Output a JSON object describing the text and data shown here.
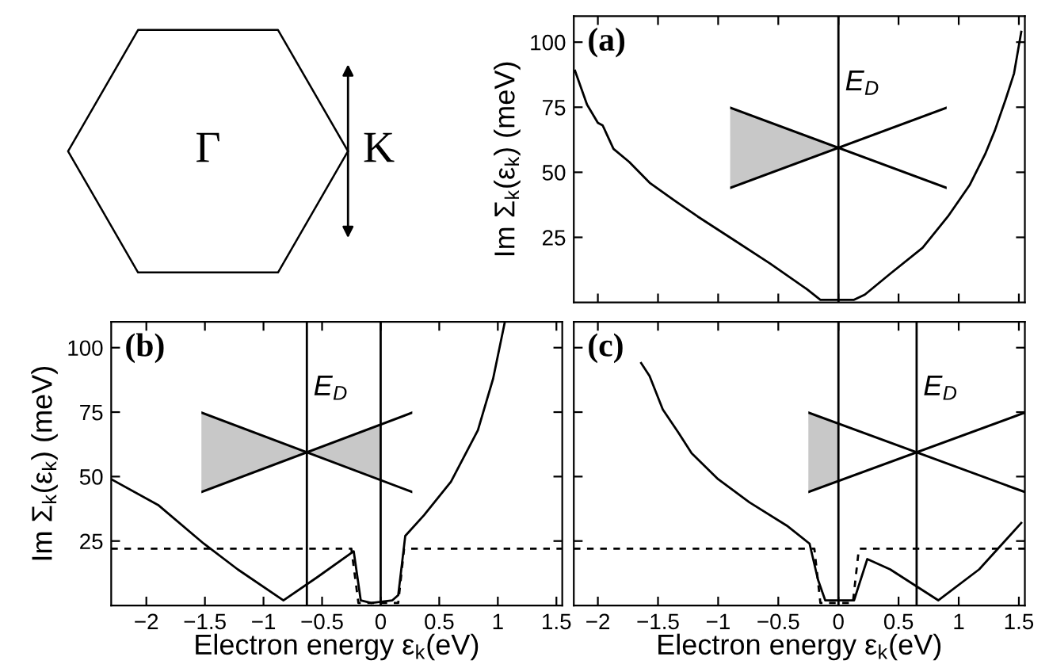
{
  "chart_data": [
    {
      "type": "other",
      "annotations": [
        "Γ",
        "K"
      ]
    },
    {
      "type": "line",
      "title": "(a)",
      "ylabel": "Im Σ$_{k}$(ε$_{k}$) (meV)",
      "xlim": [
        -2.2,
        1.55
      ],
      "ylim": [
        0,
        110
      ],
      "xticks": [
        -2,
        -1.5,
        -1,
        -0.5,
        0,
        0.5,
        1,
        1.5
      ],
      "yticks": [
        25,
        50,
        75,
        100
      ],
      "tick_labels": "y",
      "grid": false,
      "legend": false,
      "ref_lines": [
        {
          "axis": "x",
          "value": 0,
          "label": "E$_{D}$"
        }
      ],
      "series": [
        {
          "color": "#000000",
          "x": [
            -2.19,
            -2.09,
            -2.0,
            -1.96,
            -1.87,
            -1.74,
            -1.57,
            -1.39,
            -1.17,
            -0.87,
            -0.57,
            -0.26,
            -0.15,
            0.13,
            0.22,
            0.43,
            0.7,
            0.91,
            1.09,
            1.22,
            1.3,
            1.39,
            1.46,
            1.52
          ],
          "values": [
            89,
            76,
            69,
            68,
            59,
            54,
            46,
            40,
            33,
            24,
            15,
            5,
            1,
            1,
            3,
            11,
            21,
            33,
            45,
            57,
            66,
            78,
            88,
            104
          ]
        }
      ]
    },
    {
      "type": "line",
      "title": "(b)",
      "ylabel": "Im Σ$_{k}$(ε$_{k}$) (meV)",
      "xlabel": "Electron energy ε$_{k}$(eV)",
      "xlim": [
        -2.3,
        1.55
      ],
      "ylim": [
        0,
        110
      ],
      "xticks": [
        -2,
        -1.5,
        -1,
        -0.5,
        0,
        0.5,
        1,
        1.5
      ],
      "yticks": [
        25,
        50,
        75,
        100
      ],
      "grid": false,
      "legend": false,
      "ref_lines": [
        {
          "axis": "x",
          "value": 0
        },
        {
          "axis": "x",
          "value": -0.63,
          "label": "E$_{D}$"
        }
      ],
      "series": [
        {
          "color": "#000000",
          "x": [
            -2.3,
            -1.9,
            -1.51,
            -1.22,
            -0.83,
            -0.54,
            -0.23,
            -0.17,
            -0.08,
            0.1,
            0.15,
            0.21,
            0.37,
            0.6,
            0.83,
            0.96,
            1.06
          ],
          "values": [
            49,
            39,
            24,
            14,
            2,
            11,
            21,
            2,
            1,
            2,
            4,
            27,
            35,
            48,
            68,
            88,
            110
          ]
        },
        {
          "color": "#000000",
          "line_style": "dashed",
          "x": [
            -2.3,
            -0.25,
            -0.19,
            0.15,
            0.2,
            1.55
          ],
          "values": [
            22,
            22,
            1,
            1,
            22,
            22
          ]
        }
      ]
    },
    {
      "type": "line",
      "title": "(c)",
      "xlabel": "Electron energy ε$_{k}$(eV)",
      "xlim": [
        -2.2,
        1.55
      ],
      "ylim": [
        0,
        110
      ],
      "xticks": [
        -2,
        -1.5,
        -1,
        -0.5,
        0,
        0.5,
        1,
        1.5
      ],
      "yticks": [
        25,
        50,
        75,
        100
      ],
      "tick_labels": "x",
      "grid": false,
      "legend": false,
      "ref_lines": [
        {
          "axis": "x",
          "value": 0
        },
        {
          "axis": "x",
          "value": 0.65,
          "label": "E$_{D}$"
        }
      ],
      "series": [
        {
          "color": "#000000",
          "x": [
            -1.64,
            -1.57,
            -1.46,
            -1.33,
            -1.22,
            -1.0,
            -0.74,
            -0.43,
            -0.24,
            -0.17,
            -0.11,
            0.13,
            0.24,
            0.43,
            0.83,
            1.17,
            1.52
          ],
          "values": [
            94,
            89,
            76,
            67,
            59,
            49,
            40,
            31,
            24,
            10,
            2,
            2,
            18,
            14,
            2,
            14,
            32
          ]
        },
        {
          "color": "#000000",
          "line_style": "dashed",
          "x": [
            -2.2,
            -0.2,
            -0.15,
            0.12,
            0.17,
            1.55
          ],
          "values": [
            22,
            22,
            1,
            1,
            22,
            22
          ]
        }
      ]
    }
  ]
}
